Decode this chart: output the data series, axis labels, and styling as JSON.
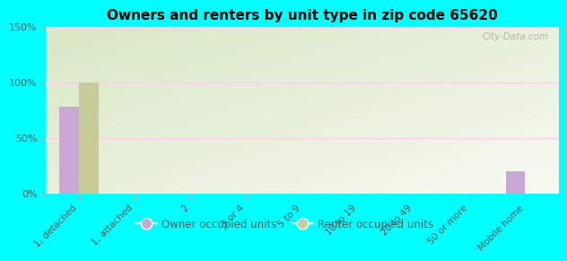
{
  "title": "Owners and renters by unit type in zip code 65620",
  "categories": [
    "1, detached",
    "1, attached",
    "2",
    "3 or 4",
    "5 to 9",
    "10 to 19",
    "20 to 49",
    "50 or more",
    "Mobile home"
  ],
  "owner_values": [
    78,
    0,
    0,
    0,
    0,
    0,
    0,
    0,
    20
  ],
  "renter_values": [
    100,
    0,
    0,
    0,
    0,
    0,
    0,
    0,
    0
  ],
  "owner_color": "#c9a8d4",
  "renter_color": "#c8cc98",
  "ylim": [
    0,
    150
  ],
  "yticks": [
    0,
    50,
    100,
    150
  ],
  "ytick_labels": [
    "0%",
    "50%",
    "100%",
    "150%"
  ],
  "background_color": "#00ffff",
  "grid_color": "#ffccee",
  "watermark": "City-Data.com",
  "legend_owner": "Owner occupied units",
  "legend_renter": "Renter occupied units",
  "bar_width": 0.35
}
